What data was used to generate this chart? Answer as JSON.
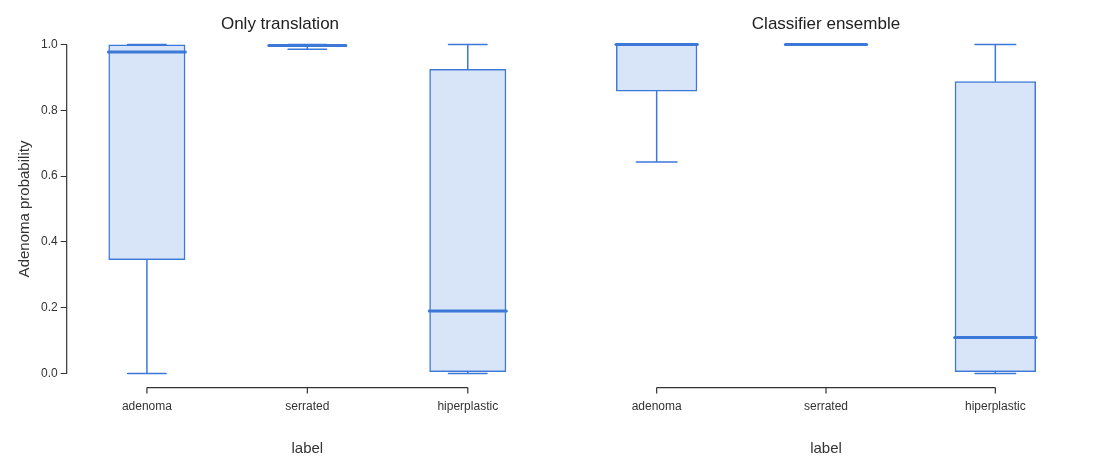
{
  "chart_data": [
    {
      "type": "box",
      "title": "Only translation",
      "xlabel": "label",
      "ylabel": "Adenoma probability",
      "categories": [
        "adenoma",
        "serrated",
        "hiperplastic"
      ],
      "ylim": [
        0,
        1
      ],
      "yticks": [
        {
          "value": 0,
          "label": "0.0"
        },
        0.2,
        0.4,
        0.6,
        0.8,
        {
          "value": 1,
          "label": "1.0"
        }
      ],
      "series": [
        {
          "color": "#3c78d8",
          "boxes": [
            {
              "low": 0.0,
              "q1": 0.345,
              "median": 0.977,
              "q3": 1.0,
              "high": 1.0
            },
            {
              "low": 0.985,
              "q1": 0.993,
              "median": 0.997,
              "q3": 1.0,
              "high": 1.0
            },
            {
              "low": 0.0,
              "q1": 0.005,
              "median": 0.19,
              "q3": 0.925,
              "high": 1.0
            }
          ]
        }
      ]
    },
    {
      "type": "box",
      "title": "Classifier ensemble",
      "xlabel": "label",
      "categories": [
        "adenoma",
        "serrated",
        "hiperplastic"
      ],
      "ylim": [
        0,
        1
      ],
      "tick_labels": "x",
      "series": [
        {
          "color": "#3c78d8",
          "boxes": [
            {
              "low": 0.643,
              "q1": 0.857,
              "median": 1.0,
              "q3": 1.0,
              "high": 1.0
            },
            {
              "low": 0.998,
              "q1": 0.999,
              "median": 1.0,
              "q3": 1.0,
              "high": 1.0
            },
            {
              "low": 0.0,
              "q1": 0.005,
              "median": 0.11,
              "q3": 0.888,
              "high": 1.0
            }
          ]
        }
      ]
    }
  ]
}
